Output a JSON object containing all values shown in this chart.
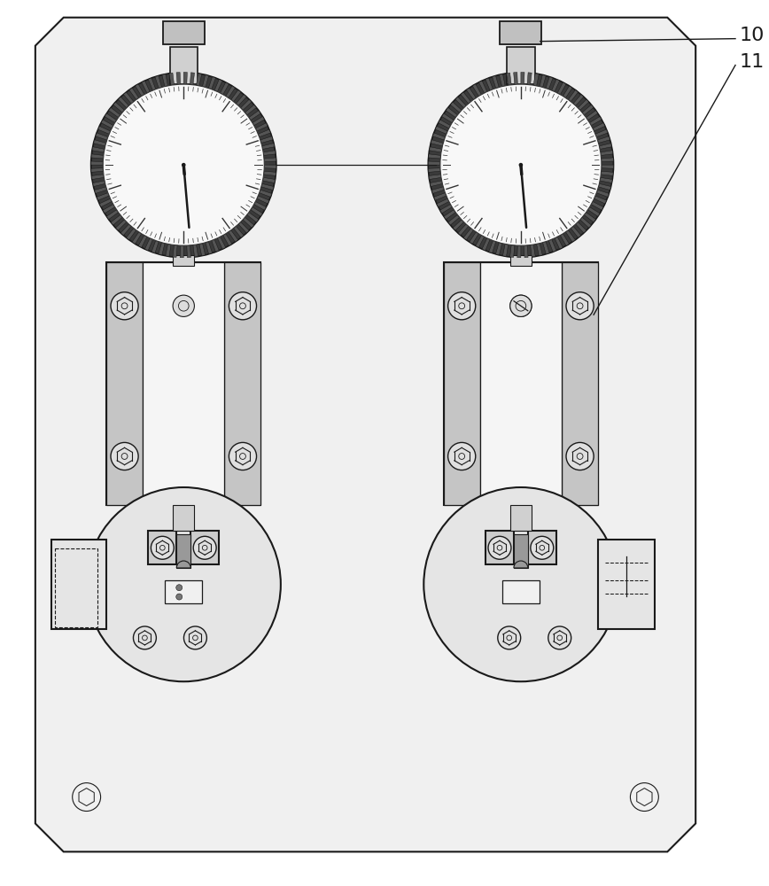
{
  "bg_color": "#ffffff",
  "line_color": "#1a1a1a",
  "label_10": "10",
  "label_11": "11",
  "figure_width": 8.68,
  "figure_height": 10.0,
  "dpi": 100
}
